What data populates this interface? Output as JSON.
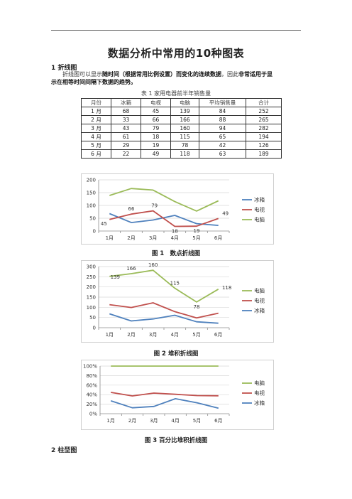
{
  "title": "数据分析中常用的10种图表",
  "section1": "1 折线图",
  "para": {
    "p1": "折线图可以显示",
    "b1": "随时间（根据常用比例设置）而变化的连续数据",
    "p2": "，因此",
    "b2": "非常适用于显",
    "b3": "示在相等时间间隔下数据的趋势。"
  },
  "table": {
    "caption": "表 1 家用电器前半年销售量",
    "headers": [
      "月份",
      "冰箱",
      "电视",
      "电脑",
      "平均销售量",
      "合计"
    ],
    "rows": [
      [
        "1 月",
        "68",
        "45",
        "139",
        "84",
        "252"
      ],
      [
        "2 月",
        "33",
        "66",
        "166",
        "88",
        "265"
      ],
      [
        "3 月",
        "43",
        "79",
        "160",
        "94",
        "282"
      ],
      [
        "4 月",
        "61",
        "18",
        "115",
        "65",
        "194"
      ],
      [
        "5 月",
        "29",
        "19",
        "78",
        "42",
        "126"
      ],
      [
        "6 月",
        "22",
        "49",
        "118",
        "63",
        "189"
      ]
    ]
  },
  "fig1_caption": "图 1　数点折线图",
  "fig2_caption": "图 2 堆积折线图",
  "fig3_caption": "图 3 百分比堆积折线图",
  "section2": "2 柱型图",
  "colors": {
    "fridge": "#4f81bd",
    "tv": "#c0504d",
    "pc": "#9bbb59",
    "grid": "#d9d9d9",
    "axis": "#8c8c8c"
  },
  "chart_data": [
    {
      "type": "line",
      "categories": [
        "1月",
        "2月",
        "3月",
        "4月",
        "5月",
        "6月"
      ],
      "ylim": [
        0,
        200
      ],
      "yticks": [
        "0",
        "50",
        "100",
        "150",
        "200"
      ],
      "grid": true,
      "legend": "right",
      "series": [
        {
          "name": "冰箱",
          "values": [
            68,
            33,
            43,
            61,
            29,
            22
          ],
          "color": "#4f81bd"
        },
        {
          "name": "电视",
          "values": [
            45,
            66,
            79,
            18,
            19,
            49
          ],
          "color": "#c0504d"
        },
        {
          "name": "电脑",
          "values": [
            139,
            166,
            160,
            115,
            78,
            118
          ],
          "color": "#9bbb59"
        }
      ],
      "data_labels": {
        "series": "电视",
        "values": [
          "45",
          "66",
          "79",
          "18",
          "19",
          "49"
        ]
      }
    },
    {
      "type": "line",
      "stacked": true,
      "categories": [
        "1月",
        "2月",
        "3月",
        "4月",
        "5月",
        "6月"
      ],
      "ylim": [
        0,
        300
      ],
      "yticks": [
        "0",
        "50",
        "100",
        "150",
        "200",
        "250",
        "300"
      ],
      "grid": true,
      "legend": "right",
      "series": [
        {
          "name": "电脑",
          "values": [
            139,
            166,
            160,
            115,
            78,
            118
          ],
          "color": "#9bbb59"
        },
        {
          "name": "电视",
          "values": [
            45,
            66,
            79,
            18,
            19,
            49
          ],
          "color": "#c0504d"
        },
        {
          "name": "冰箱",
          "values": [
            68,
            33,
            43,
            61,
            29,
            22
          ],
          "color": "#4f81bd"
        }
      ],
      "data_labels": {
        "series": "电脑",
        "values": [
          "139",
          "166",
          "160",
          "115",
          "78",
          "118"
        ]
      }
    },
    {
      "type": "line",
      "stacked": "percent",
      "categories": [
        "1月",
        "2月",
        "3月",
        "4月",
        "5月",
        "6月"
      ],
      "ylim": [
        0,
        1
      ],
      "yticks": [
        "0%",
        "20%",
        "40%",
        "60%",
        "80%",
        "100%"
      ],
      "grid": true,
      "legend": "right",
      "series": [
        {
          "name": "电脑",
          "values": [
            139,
            166,
            160,
            115,
            78,
            118
          ],
          "color": "#9bbb59"
        },
        {
          "name": "电视",
          "values": [
            45,
            66,
            79,
            18,
            19,
            49
          ],
          "color": "#c0504d"
        },
        {
          "name": "冰箱",
          "values": [
            68,
            33,
            43,
            61,
            29,
            22
          ],
          "color": "#4f81bd"
        }
      ]
    }
  ]
}
